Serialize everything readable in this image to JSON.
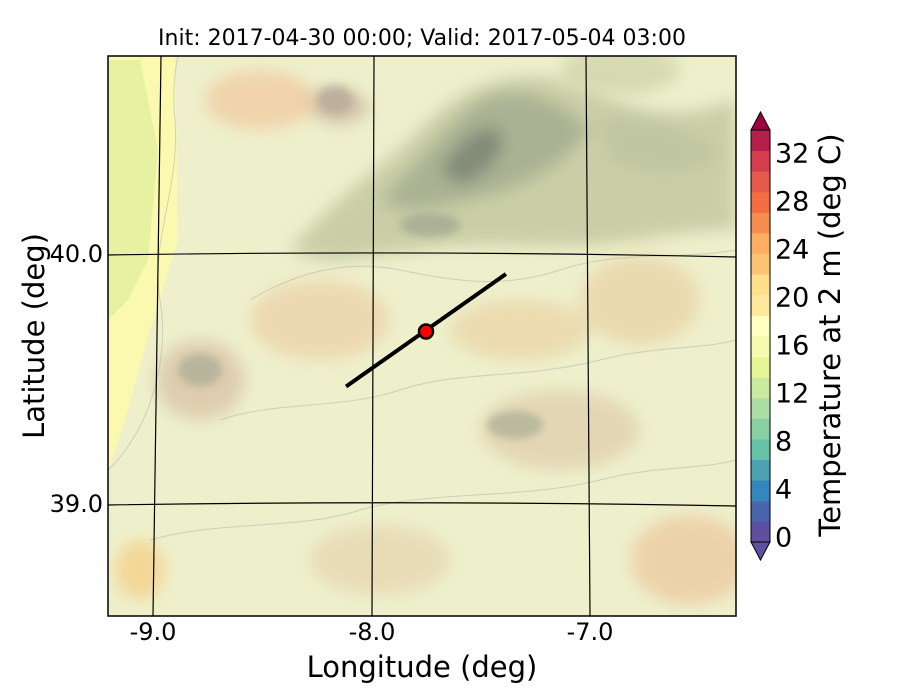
{
  "title": "Init: 2017-04-30 00:00; Valid: 2017-05-04 03:00",
  "xlabel": "Longitude (deg)",
  "ylabel": "Latitude (deg)",
  "colorbar_label": "Temperature at 2 m (deg C)",
  "x_ticks": [
    "-9.0",
    "-8.0",
    "-7.0"
  ],
  "y_ticks": [
    "40.0",
    "39.0"
  ],
  "colorbar_ticks": [
    "0",
    "4",
    "8",
    "12",
    "16",
    "20",
    "24",
    "28",
    "32"
  ],
  "colorbar_colors": [
    "#5e4fa2",
    "#4965ad",
    "#3288bd",
    "#4ba0b1",
    "#66c2a5",
    "#88d0a4",
    "#abdda4",
    "#c9e99e",
    "#e6f598",
    "#f4faae",
    "#ffffbf",
    "#fee99d",
    "#fee08b",
    "#fdc374",
    "#fdae61",
    "#f88d52",
    "#f46d43",
    "#e55a4b",
    "#d53e4f",
    "#b51f4a",
    "#9e0142"
  ],
  "map": {
    "transect": {
      "start": {
        "lon": -8.12,
        "lat": 39.47
      },
      "end": {
        "lon": -7.38,
        "lat": 39.92
      },
      "color": "#000000"
    },
    "point": {
      "lon": -7.75,
      "lat": 39.69,
      "color": "#ff0000"
    }
  }
}
